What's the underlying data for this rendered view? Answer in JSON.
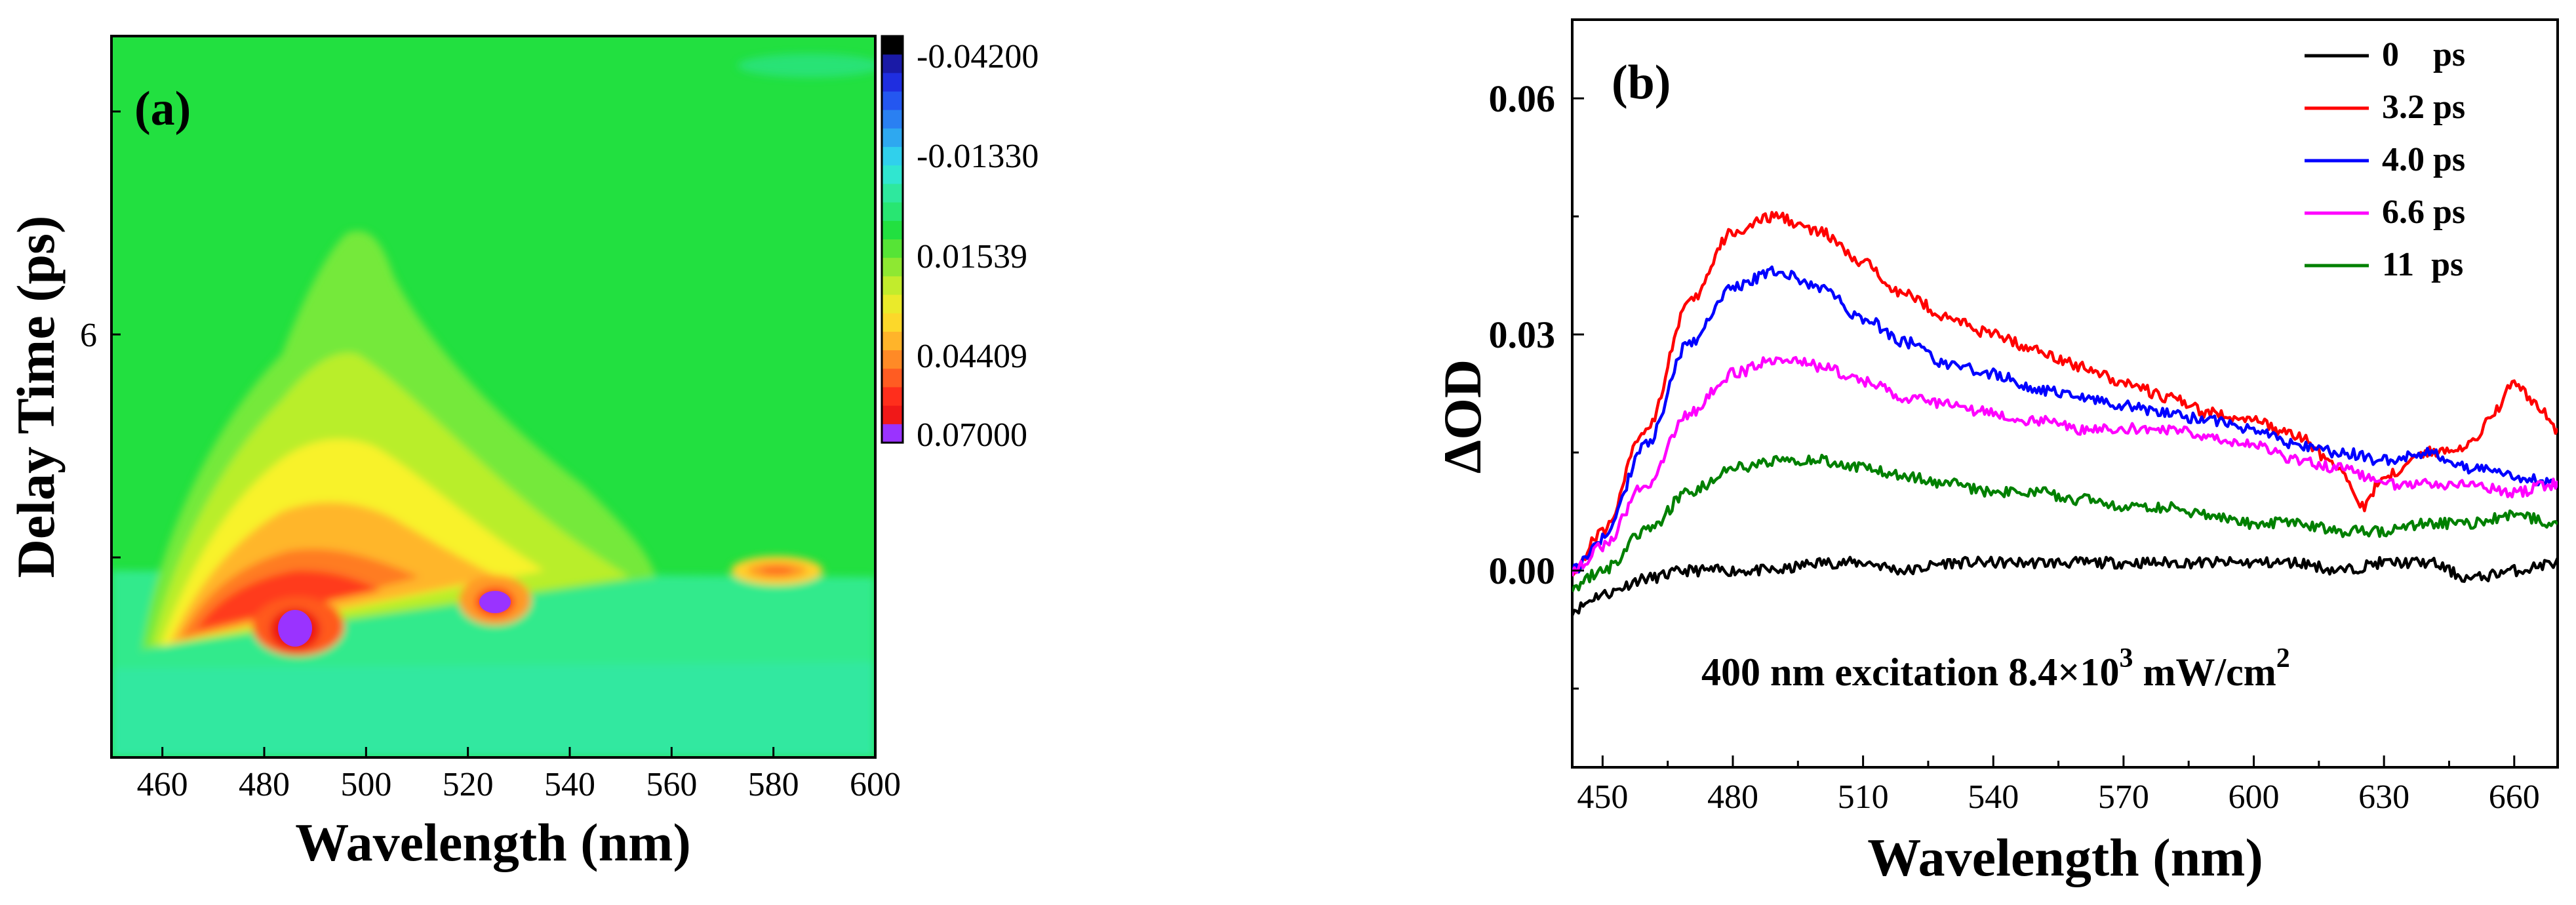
{
  "chart_data": [
    {
      "type": "heatmap",
      "panel_label": "(a)",
      "xlabel": "Wavelength (nm)",
      "ylabel": "Delay Time (ps)",
      "xlim": [
        450,
        600
      ],
      "x_ticks": [
        460,
        480,
        500,
        520,
        540,
        560,
        580,
        600
      ],
      "ylim": [
        2,
        9
      ],
      "y_tick_labels": [
        "6"
      ],
      "colorbar": {
        "tick_labels": [
          "-0.04200",
          "-0.01330",
          "0.01539",
          "0.04409",
          "0.07000"
        ],
        "range": [
          -0.042,
          0.07
        ]
      }
    },
    {
      "type": "line",
      "panel_label": "(b)",
      "xlabel": "Wavelength (nm)",
      "ylabel": "ΔOD",
      "xlim": [
        443,
        670
      ],
      "ylim": [
        -0.025,
        0.07
      ],
      "x_ticks": [
        450,
        480,
        510,
        540,
        570,
        600,
        630,
        660
      ],
      "y_ticks": [
        0.0,
        0.03,
        0.06
      ],
      "y_tick_labels": [
        "0.00",
        "0.03",
        "0.06"
      ],
      "annotation": {
        "prefix": "400 nm excitation 8.4×10",
        "exponent1": "3",
        "units": " mW/cm",
        "exponent2": "2"
      },
      "series": [
        {
          "name": "0    ps",
          "color": "#000000",
          "x": [
            443,
            450,
            460,
            470,
            480,
            490,
            500,
            510,
            520,
            530,
            540,
            550,
            560,
            570,
            580,
            590,
            600,
            610,
            620,
            630,
            640,
            650,
            660,
            670
          ],
          "y": [
            -0.005,
            -0.003,
            -0.001,
            0.0,
            0.0,
            0.0,
            0.001,
            0.001,
            0.0,
            0.001,
            0.001,
            0.001,
            0.001,
            0.001,
            0.001,
            0.001,
            0.001,
            0.001,
            0.0,
            0.001,
            0.001,
            -0.001,
            0.0,
            0.001
          ]
        },
        {
          "name": "3.2 ps",
          "color": "#ff0000",
          "x": [
            443,
            450,
            460,
            470,
            480,
            490,
            500,
            510,
            520,
            530,
            540,
            550,
            560,
            570,
            580,
            590,
            600,
            610,
            620,
            625,
            630,
            640,
            650,
            655,
            660,
            665,
            670
          ],
          "y": [
            0.0,
            0.005,
            0.018,
            0.034,
            0.043,
            0.045,
            0.043,
            0.039,
            0.035,
            0.032,
            0.03,
            0.028,
            0.026,
            0.024,
            0.022,
            0.02,
            0.019,
            0.017,
            0.013,
            0.008,
            0.012,
            0.015,
            0.016,
            0.02,
            0.024,
            0.021,
            0.018
          ]
        },
        {
          "name": "4.0 ps",
          "color": "#0000ff",
          "x": [
            443,
            450,
            460,
            470,
            480,
            490,
            500,
            510,
            520,
            530,
            540,
            550,
            560,
            570,
            580,
            590,
            600,
            610,
            620,
            630,
            640,
            650,
            660,
            670
          ],
          "y": [
            0.0,
            0.004,
            0.016,
            0.029,
            0.036,
            0.038,
            0.036,
            0.032,
            0.029,
            0.026,
            0.025,
            0.023,
            0.022,
            0.021,
            0.02,
            0.019,
            0.018,
            0.016,
            0.015,
            0.014,
            0.015,
            0.013,
            0.012,
            0.011
          ]
        },
        {
          "name": "6.6 ps",
          "color": "#ff00ff",
          "x": [
            443,
            450,
            460,
            470,
            480,
            490,
            500,
            510,
            520,
            530,
            540,
            550,
            560,
            570,
            580,
            590,
            600,
            610,
            620,
            630,
            640,
            650,
            660,
            670
          ],
          "y": [
            0.0,
            0.003,
            0.011,
            0.02,
            0.025,
            0.027,
            0.026,
            0.024,
            0.022,
            0.021,
            0.02,
            0.019,
            0.018,
            0.018,
            0.018,
            0.017,
            0.016,
            0.014,
            0.013,
            0.011,
            0.011,
            0.011,
            0.01,
            0.011
          ]
        },
        {
          "name": "11  ps",
          "color": "#008000",
          "x": [
            443,
            450,
            460,
            470,
            480,
            490,
            500,
            510,
            520,
            530,
            540,
            550,
            560,
            570,
            580,
            590,
            600,
            610,
            620,
            630,
            640,
            650,
            660,
            670
          ],
          "y": [
            -0.002,
            0.0,
            0.005,
            0.01,
            0.013,
            0.014,
            0.014,
            0.013,
            0.012,
            0.011,
            0.01,
            0.01,
            0.009,
            0.008,
            0.008,
            0.007,
            0.006,
            0.006,
            0.005,
            0.005,
            0.006,
            0.006,
            0.007,
            0.006
          ]
        }
      ]
    }
  ]
}
